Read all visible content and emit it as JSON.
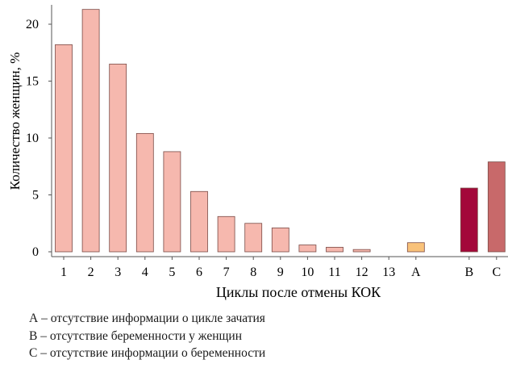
{
  "chart_data": {
    "type": "bar",
    "title": "",
    "xlabel": "Циклы после отмены КОК",
    "ylabel": "Количество женщин, %",
    "ylim": [
      0,
      22
    ],
    "yticks": [
      0,
      5,
      10,
      15,
      20
    ],
    "grid": false,
    "categories": [
      "1",
      "2",
      "3",
      "4",
      "5",
      "6",
      "7",
      "8",
      "9",
      "10",
      "11",
      "12",
      "13",
      "A",
      "B",
      "C"
    ],
    "values": [
      18.2,
      21.3,
      16.5,
      10.4,
      8.8,
      5.3,
      3.1,
      2.5,
      2.1,
      0.6,
      0.4,
      0.2,
      0,
      0.8,
      5.6,
      7.9
    ],
    "colors": [
      "#f6b8ae",
      "#f6b8ae",
      "#f6b8ae",
      "#f6b8ae",
      "#f6b8ae",
      "#f6b8ae",
      "#f6b8ae",
      "#f6b8ae",
      "#f6b8ae",
      "#f6b8ae",
      "#f6b8ae",
      "#f6b8ae",
      "#f6b8ae",
      "#f9c27a",
      "#a3083a",
      "#c8696a"
    ],
    "legend_notes": [
      "А – отсутствие информации о цикле зачатия",
      "В – отсутствие беременности у женщин",
      "С – отсутствие информации о беременности"
    ]
  }
}
